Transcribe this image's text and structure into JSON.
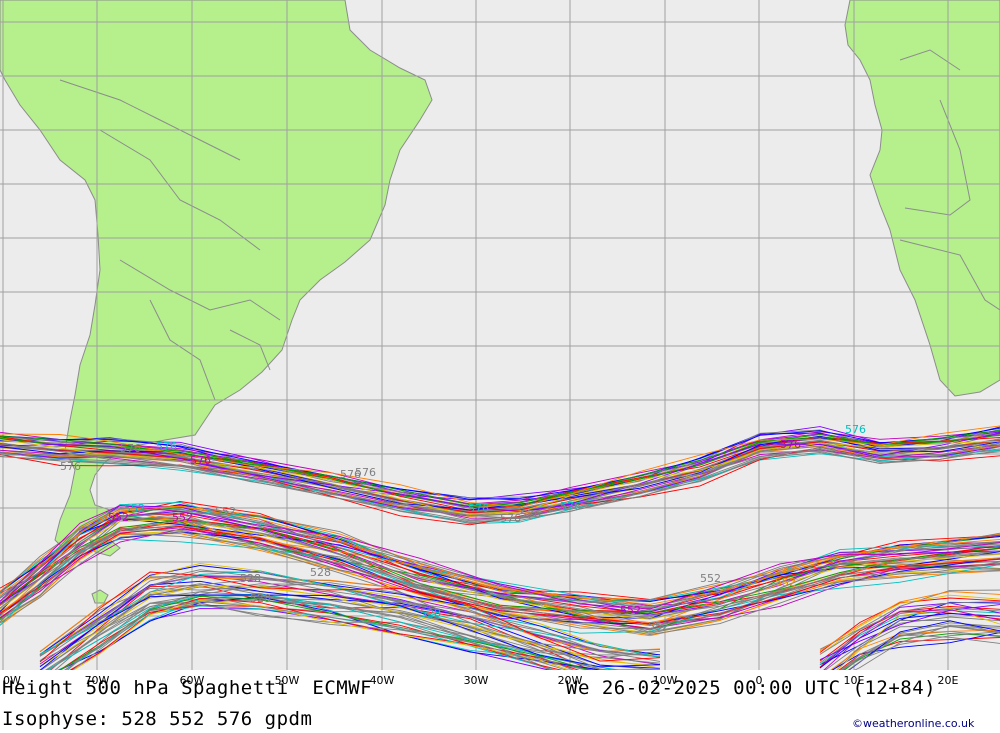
{
  "title_left": "Height 500 hPa Spaghetti  ECMWF",
  "title_right": "We 26-02-2025 00:00 UTC (12+84)",
  "subtitle": "Isophyse: 528 552 576 gpdm",
  "credit": "©weatheronline.co.uk",
  "colors": {
    "ocean": "#ececec",
    "land": "#b5f08c",
    "grid": "#a0a0a0",
    "border": "#8c8c8c",
    "member_line": "#808080"
  },
  "longitude_labels": [
    "0W",
    "70W",
    "60W",
    "50W",
    "40W",
    "30W",
    "20W",
    "10W",
    "0",
    "10E",
    "20E"
  ],
  "isolines": [
    "528",
    "552",
    "576"
  ],
  "contour_labels": [
    {
      "text": "576",
      "color": "#808080"
    },
    {
      "text": "576",
      "color": "#00c0c0"
    },
    {
      "text": "576",
      "color": "#808080"
    },
    {
      "text": "576",
      "color": "#c000c0"
    },
    {
      "text": "576",
      "color": "#808080"
    },
    {
      "text": "576",
      "color": "#808080"
    },
    {
      "text": "576",
      "color": "#808080"
    },
    {
      "text": "576",
      "color": "#00c0c0"
    },
    {
      "text": "576",
      "color": "#808080"
    },
    {
      "text": "576",
      "color": "#00c0c0"
    },
    {
      "text": "576",
      "color": "#00c0c0"
    },
    {
      "text": "576",
      "color": "#c000c0"
    },
    {
      "text": "552",
      "color": "#c000c0"
    },
    {
      "text": "552",
      "color": "#00c0c0"
    },
    {
      "text": "552",
      "color": "#808080"
    },
    {
      "text": "552",
      "color": "#808080"
    },
    {
      "text": "552",
      "color": "#c000c0"
    },
    {
      "text": "552",
      "color": "#c000c0"
    },
    {
      "text": "552",
      "color": "#808080"
    },
    {
      "text": "552",
      "color": "#ff8000"
    },
    {
      "text": "528",
      "color": "#808080"
    },
    {
      "text": "528",
      "color": "#808080"
    },
    {
      "text": "528",
      "color": "#00c0c0"
    },
    {
      "text": "528",
      "color": "#808080"
    }
  ]
}
